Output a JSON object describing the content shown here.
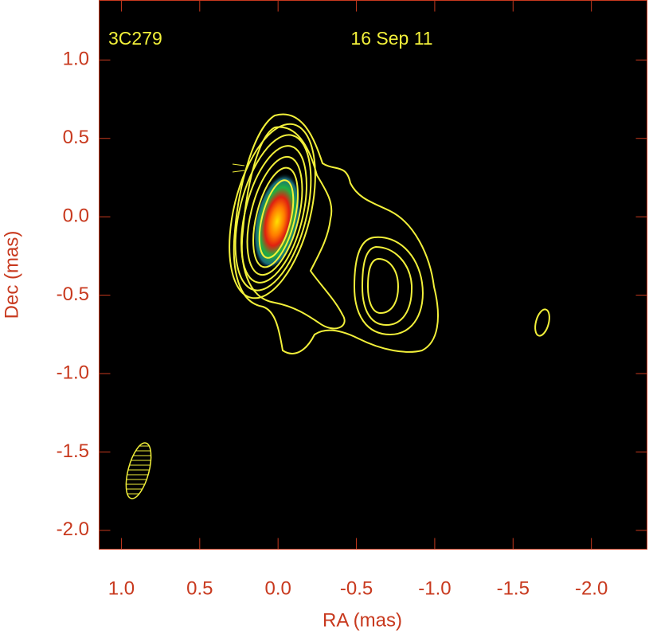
{
  "chart_data": {
    "type": "contour",
    "source_label": "3C279",
    "date_label": "16 Sep 11",
    "x_label": "RA (mas)",
    "y_label": "Dec (mas)",
    "xlim": [
      1.142,
      -2.355
    ],
    "ylim": [
      -2.12,
      1.38
    ],
    "xticks": [
      {
        "value": 1.0,
        "label": "1.0"
      },
      0.5,
      {
        "value": 0.0,
        "label": "0.0"
      },
      -0.5,
      {
        "value": -1.0,
        "label": "-1.0"
      },
      -1.5,
      {
        "value": -2.0,
        "label": "-2.0"
      }
    ],
    "yticks": [
      {
        "value": 1.0,
        "label": "1.0"
      },
      0.5,
      {
        "value": 0.0,
        "label": "0.0"
      },
      -0.5,
      {
        "value": -1.0,
        "label": "-1.0"
      },
      -1.5,
      {
        "value": -2.0,
        "label": "-2.0"
      }
    ],
    "axis_color": "#c8391e",
    "contour_color": "#f2f03a"
  }
}
